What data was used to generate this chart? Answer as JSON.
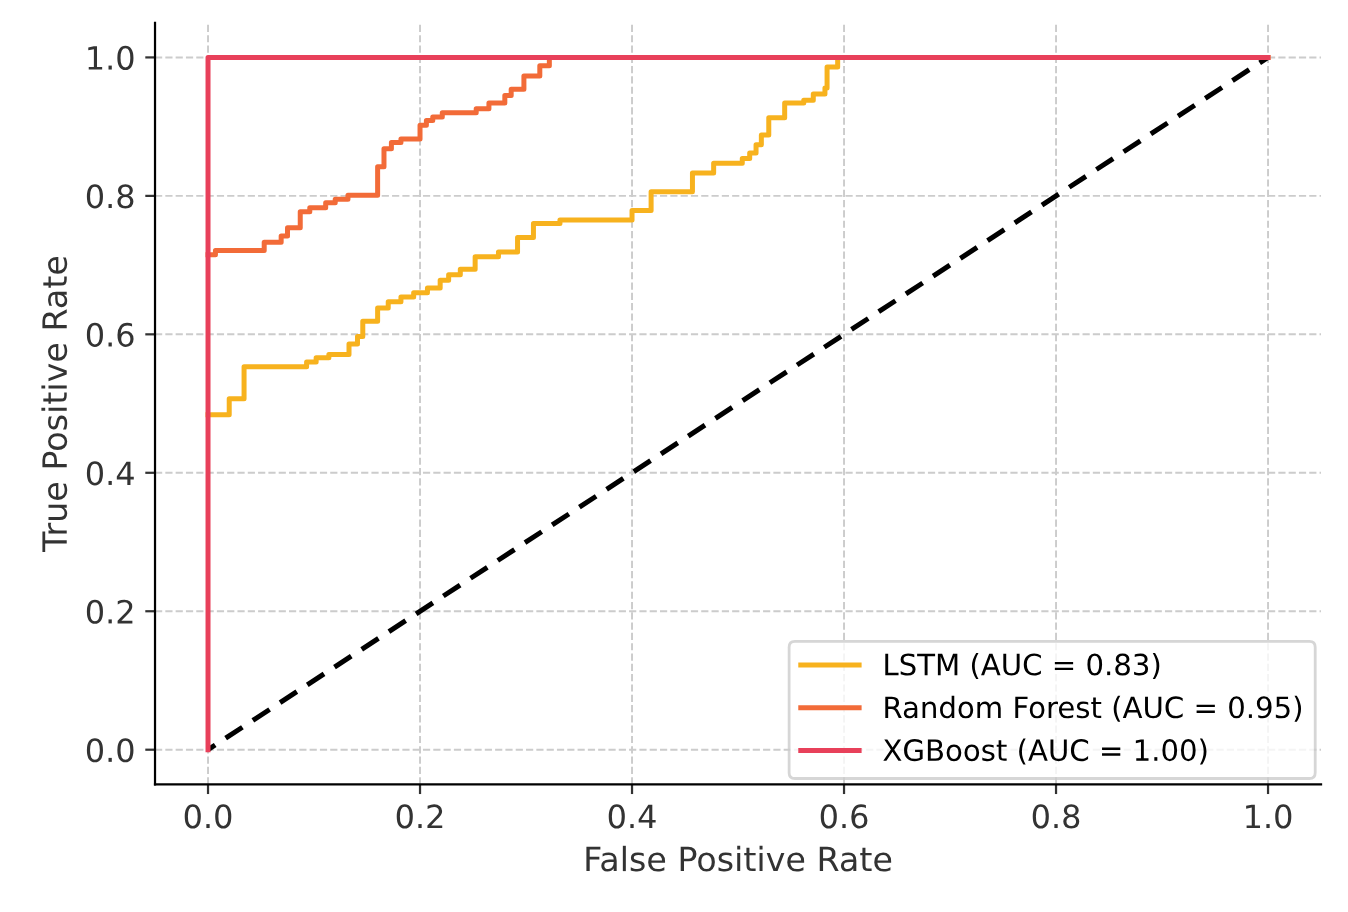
{
  "chart_data": {
    "type": "step",
    "xlabel": "False Positive Rate",
    "ylabel": "True Positive Rate",
    "xlim": [
      -0.05,
      1.05
    ],
    "ylim": [
      -0.05,
      1.05
    ],
    "xticks": [
      {
        "value": 0,
        "label": "0.0"
      },
      0.2,
      0.4,
      0.6,
      0.8,
      {
        "value": 1,
        "label": "1.0"
      }
    ],
    "yticks": [
      {
        "value": 0,
        "label": "0.0"
      },
      0.2,
      0.4,
      0.6,
      0.8,
      {
        "value": 1,
        "label": "1.0"
      }
    ],
    "grid": true,
    "legend": "bottom right",
    "series": [
      {
        "name": "LSTM (AUC = 0.83)",
        "color": "#f7b21e",
        "x": [
          0.0,
          0.02,
          0.034,
          0.093,
          0.102,
          0.114,
          0.133,
          0.141,
          0.146,
          0.16,
          0.17,
          0.182,
          0.194,
          0.207,
          0.219,
          0.227,
          0.238,
          0.252,
          0.274,
          0.292,
          0.307,
          0.332,
          0.4,
          0.418,
          0.457,
          0.477,
          0.504,
          0.511,
          0.517,
          0.522,
          0.529,
          0.544,
          0.562,
          0.571,
          0.582,
          0.584,
          0.594,
          1.0
        ],
        "values": [
          0.484,
          0.507,
          0.553,
          0.56,
          0.566,
          0.571,
          0.586,
          0.597,
          0.619,
          0.638,
          0.647,
          0.654,
          0.66,
          0.667,
          0.678,
          0.686,
          0.694,
          0.712,
          0.719,
          0.74,
          0.76,
          0.765,
          0.779,
          0.806,
          0.833,
          0.847,
          0.854,
          0.862,
          0.874,
          0.888,
          0.913,
          0.934,
          0.938,
          0.947,
          0.956,
          0.986,
          1.0,
          1.0
        ]
      },
      {
        "name": "Random Forest (AUC = 0.95)",
        "color": "#f26b38",
        "x": [
          0.0,
          0.007,
          0.053,
          0.069,
          0.075,
          0.087,
          0.096,
          0.111,
          0.12,
          0.132,
          0.16,
          0.166,
          0.173,
          0.182,
          0.2,
          0.206,
          0.212,
          0.221,
          0.253,
          0.265,
          0.28,
          0.286,
          0.298,
          0.313,
          0.322
        ],
        "values": [
          0.715,
          0.721,
          0.733,
          0.742,
          0.754,
          0.777,
          0.783,
          0.79,
          0.795,
          0.801,
          0.842,
          0.868,
          0.877,
          0.882,
          0.902,
          0.909,
          0.914,
          0.92,
          0.926,
          0.934,
          0.945,
          0.954,
          0.973,
          0.988,
          1.0
        ]
      },
      {
        "name": "XGBoost (AUC = 1.00)",
        "color": "#e8405a",
        "x": [
          0.0,
          0.0,
          1.0
        ],
        "values": [
          0.0,
          1.0,
          1.0
        ]
      },
      {
        "type": "line",
        "color": "#000000",
        "line_style": "dashed",
        "x": [
          0.0,
          1.0
        ],
        "values": [
          0.0,
          1.0
        ]
      }
    ]
  }
}
